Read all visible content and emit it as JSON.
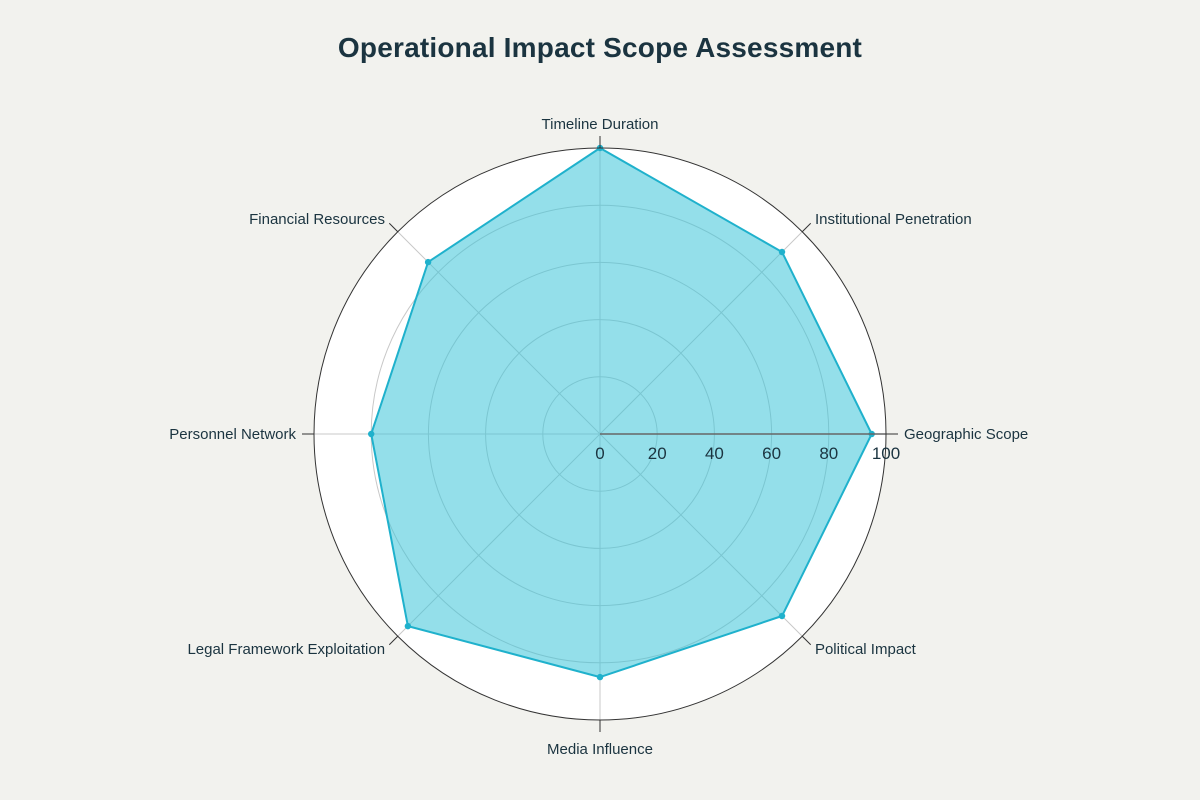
{
  "chart_data": {
    "type": "radar",
    "title": "Operational Impact Scope Assessment",
    "categories": [
      "Geographic Scope",
      "Institutional Penetration",
      "Timeline Duration",
      "Financial Resources",
      "Personnel Network",
      "Legal Framework Exploitation",
      "Media Influence",
      "Political Impact"
    ],
    "series": [
      {
        "values": [
          95,
          90,
          100,
          85,
          80,
          95,
          85,
          90
        ]
      }
    ],
    "radial_range": [
      0,
      100
    ],
    "radial_ticks": [
      0,
      20,
      40,
      60,
      80,
      100
    ],
    "colors": {
      "fill": "#3cc4d8",
      "fill_opacity": 0.55,
      "line": "#1fb1cc",
      "grid": "#c8c8c8",
      "outer_ring": "#333333",
      "radial_axis": "#666666",
      "plot_bg": "#ffffff",
      "paper_bg": "#f2f2ee"
    }
  }
}
